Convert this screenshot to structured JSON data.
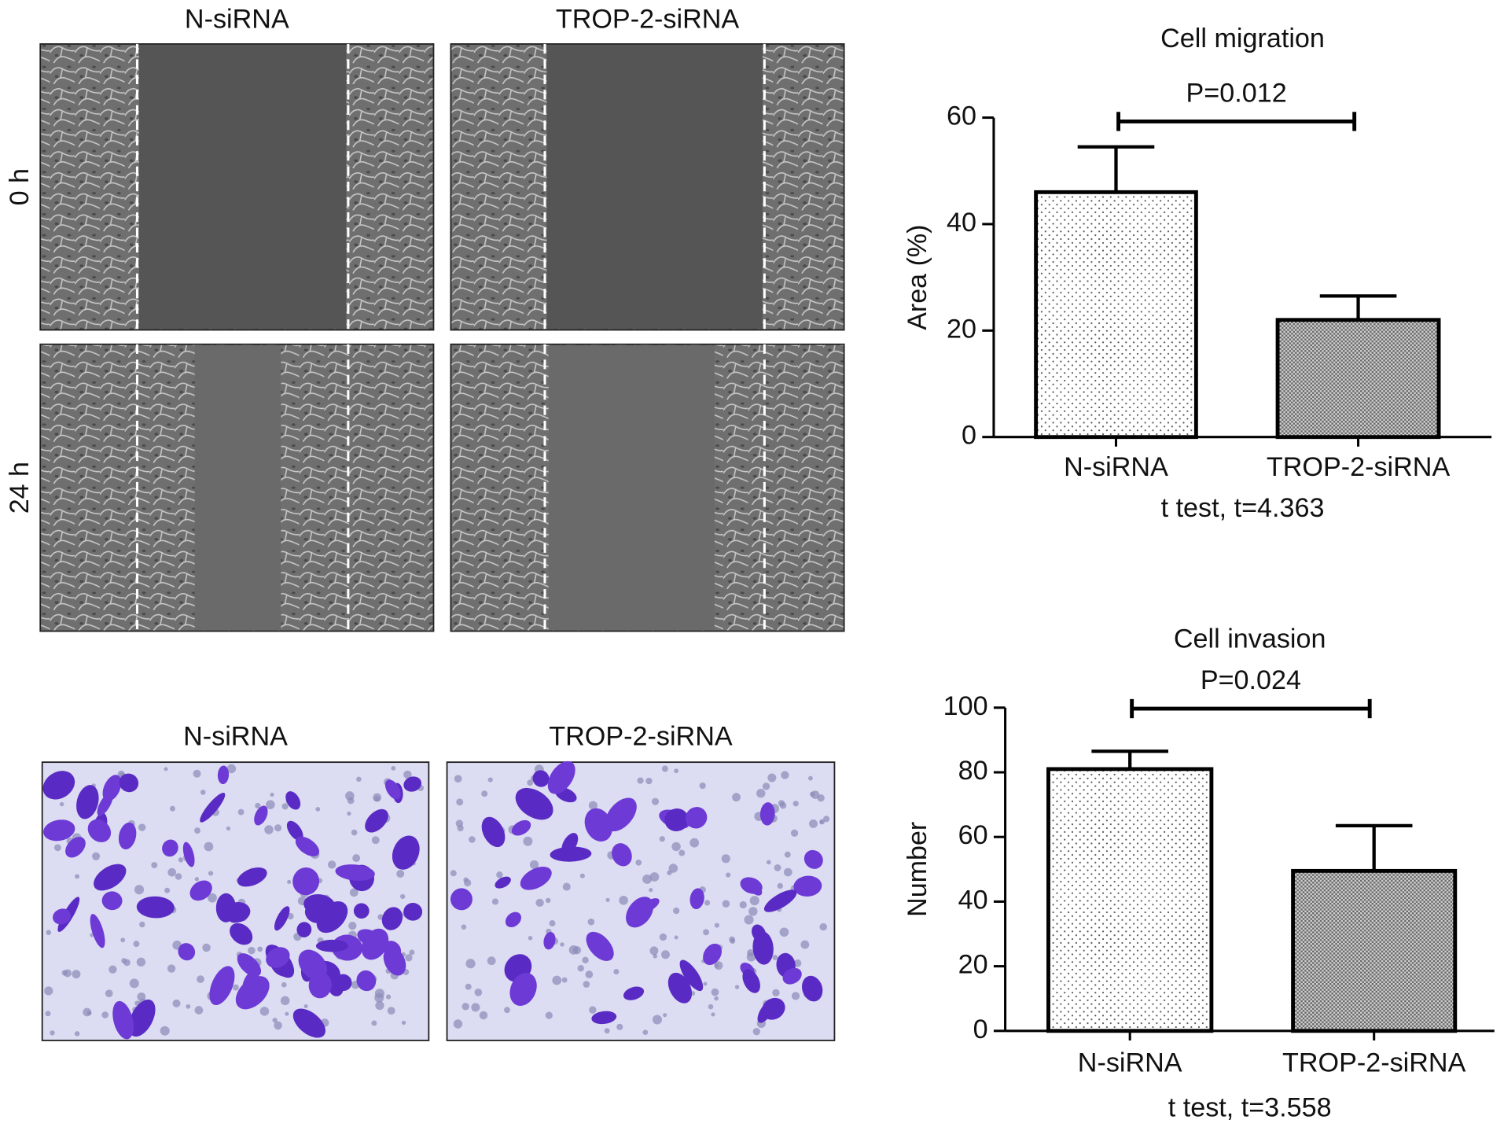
{
  "images": {
    "wound_healing": {
      "columns": [
        "N-siRNA",
        "TROP-2-siRNA"
      ],
      "rows": [
        "0 h",
        "24 h"
      ]
    },
    "invasion": {
      "columns": [
        "N-siRNA",
        "TROP-2-siRNA"
      ]
    }
  },
  "chart_data": [
    {
      "type": "bar",
      "title": "Cell migration",
      "ylabel": "Area (%)",
      "xlabel": "t test, t=4.363",
      "annotation": "P=0.012",
      "categories": [
        "N-siRNA",
        "TROP-2-siRNA"
      ],
      "values": [
        46,
        22
      ],
      "errors": [
        8.5,
        4.5
      ],
      "colors": [
        "#ffffff",
        "#6a6a6a"
      ],
      "ylim": [
        0,
        60
      ],
      "yticks": [
        0,
        20,
        40,
        60
      ]
    },
    {
      "type": "bar",
      "title": "Cell invasion",
      "ylabel": "Number",
      "xlabel": "t test, t=3.558",
      "annotation": "P=0.024",
      "categories": [
        "N-siRNA",
        "TROP-2-siRNA"
      ],
      "values": [
        81,
        49.5
      ],
      "errors": [
        5.5,
        14
      ],
      "colors": [
        "#ffffff",
        "#6a6a6a"
      ],
      "ylim": [
        0,
        100
      ],
      "yticks": [
        0,
        20,
        40,
        60,
        80,
        100
      ]
    }
  ]
}
